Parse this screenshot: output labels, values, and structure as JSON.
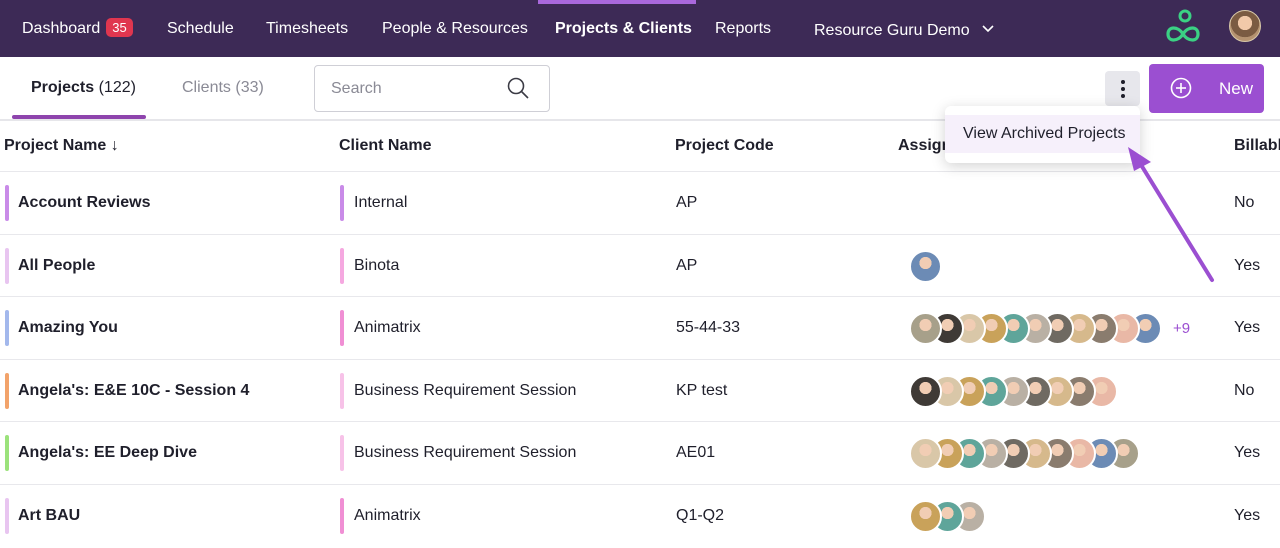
{
  "nav": {
    "items": [
      {
        "label": "Dashboard",
        "badge": "35"
      },
      {
        "label": "Schedule"
      },
      {
        "label": "Timesheets"
      },
      {
        "label": "People & Resources"
      },
      {
        "label": "Projects & Clients",
        "active": true
      },
      {
        "label": "Reports"
      },
      {
        "label": "Resource Guru Demo"
      }
    ]
  },
  "tabs": [
    {
      "label": "Projects",
      "count": "(122)",
      "active": true
    },
    {
      "label": "Clients",
      "count": "(33)"
    }
  ],
  "search": {
    "placeholder": "Search",
    "value": ""
  },
  "actions": {
    "new_label": "New"
  },
  "menu": {
    "items": [
      "View Archived Projects"
    ]
  },
  "table": {
    "columns": [
      "Project Name ↓",
      "Client Name",
      "Project Code",
      "Assigned",
      "Billable"
    ],
    "rows": [
      {
        "name": "Account Reviews",
        "color": "#c98be8",
        "client": "Internal",
        "client_color": "#c98be8",
        "code": "AP",
        "avatar_count": 0,
        "more": "",
        "billable": "No"
      },
      {
        "name": "All People",
        "color": "#e8c5f0",
        "client": "Binota",
        "client_color": "#f5a8e0",
        "code": "AP",
        "avatar_count": 1,
        "more": "",
        "billable": "Yes"
      },
      {
        "name": "Amazing You",
        "color": "#a3b8ec",
        "client": "Animatrix",
        "client_color": "#f08fd4",
        "code": "55-44-33",
        "avatar_count": 11,
        "more": "+9",
        "billable": "Yes"
      },
      {
        "name": "Angela's: E&E 10C - Session 4",
        "color": "#f2a36b",
        "client": "Business Requirement Session",
        "client_color": "#f7c2e8",
        "code": "KP test",
        "avatar_count": 9,
        "more": "",
        "billable": "No"
      },
      {
        "name": "Angela's: EE Deep Dive",
        "color": "#9be27b",
        "client": "Business Requirement Session",
        "client_color": "#f7c2e8",
        "code": "AE01",
        "avatar_count": 10,
        "more": "",
        "billable": "Yes"
      },
      {
        "name": "Art BAU",
        "color": "#e8c5f0",
        "client": "Animatrix",
        "client_color": "#f08fd4",
        "code": "Q1-Q2",
        "avatar_count": 3,
        "more": "",
        "billable": "Yes"
      }
    ]
  },
  "colors": {
    "nav_bg": "#3d2a56",
    "accent": "#9b4fd1",
    "badge": "#e0364f",
    "logo": "#3bd184"
  }
}
